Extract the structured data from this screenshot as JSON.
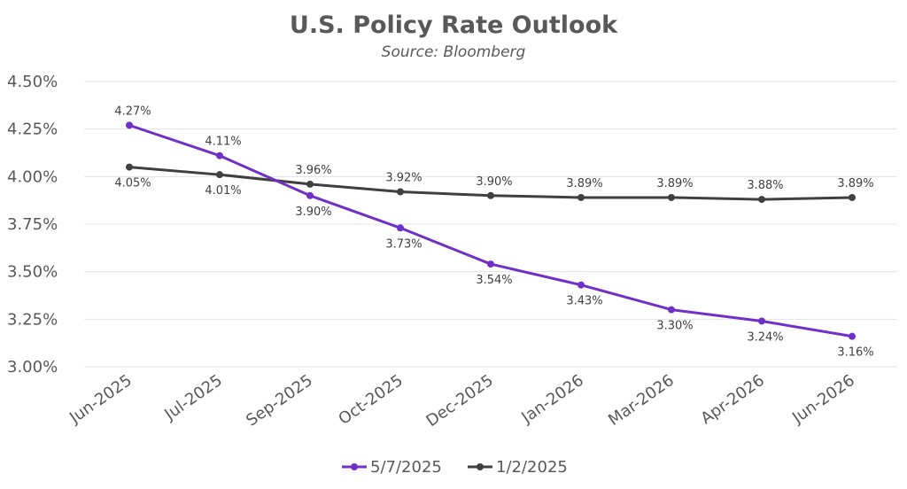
{
  "chart_data": {
    "type": "line",
    "title": "U.S. Policy Rate Outlook",
    "subtitle": "Source: Bloomberg",
    "categories": [
      "Jun-2025",
      "Jul-2025",
      "Sep-2025",
      "Oct-2025",
      "Dec-2025",
      "Jan-2026",
      "Mar-2026",
      "Apr-2026",
      "Jun-2026"
    ],
    "series": [
      {
        "name": "5/7/2025",
        "color": "#7030c8",
        "values": [
          4.27,
          4.11,
          3.9,
          3.73,
          3.54,
          3.43,
          3.3,
          3.24,
          3.16
        ],
        "labels": [
          "4.27%",
          "4.11%",
          "3.90%",
          "3.73%",
          "3.54%",
          "3.43%",
          "3.30%",
          "3.24%",
          "3.16%"
        ]
      },
      {
        "name": "1/2/2025",
        "color": "#404040",
        "values": [
          4.05,
          4.01,
          3.96,
          3.92,
          3.9,
          3.89,
          3.89,
          3.88,
          3.89
        ],
        "labels": [
          "4.05%",
          "4.01%",
          "3.96%",
          "3.92%",
          "3.90%",
          "3.89%",
          "3.89%",
          "3.88%",
          "3.89%"
        ]
      }
    ],
    "ylim": [
      3.0,
      4.5
    ],
    "yticks": [
      3.0,
      3.25,
      3.5,
      3.75,
      4.0,
      4.25,
      4.5
    ],
    "ytick_labels": [
      "3.00%",
      "3.25%",
      "3.50%",
      "3.75%",
      "4.00%",
      "4.25%",
      "4.50%"
    ],
    "grid": true,
    "legend": "bottom"
  }
}
